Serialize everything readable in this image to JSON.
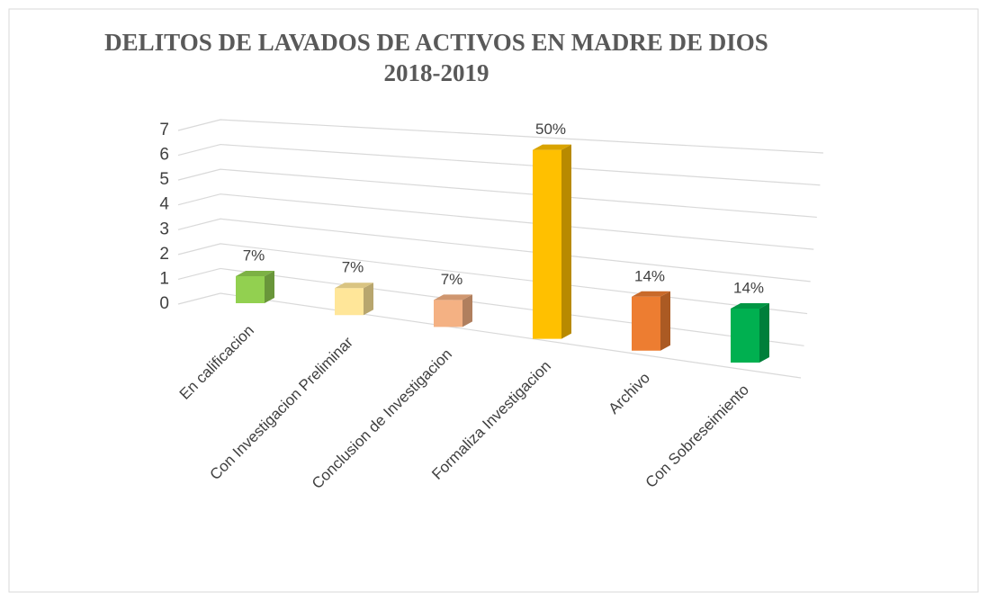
{
  "chart_data": {
    "type": "bar3d",
    "title": [
      "DELITOS DE LAVADOS DE ACTIVOS EN MADRE DE DIOS",
      "2018-2019"
    ],
    "categories": [
      "En calificacion",
      "Con Investigacion Preliminar",
      "Conclusion de Investigacion",
      "Formaliza Investigacion",
      "Archivo",
      "Con Sobreseimiento"
    ],
    "values": [
      1,
      1,
      1,
      7,
      2,
      2
    ],
    "value_labels": [
      "7%",
      "7%",
      "7%",
      "50%",
      "14%",
      "14%"
    ],
    "colors": [
      "#92d050",
      "#ffe699",
      "#f4b183",
      "#ffc000",
      "#ed7d31",
      "#00b050"
    ],
    "ylim": [
      0,
      7
    ],
    "yticks": [
      0,
      1,
      2,
      3,
      4,
      5,
      6,
      7
    ],
    "grid": true
  }
}
